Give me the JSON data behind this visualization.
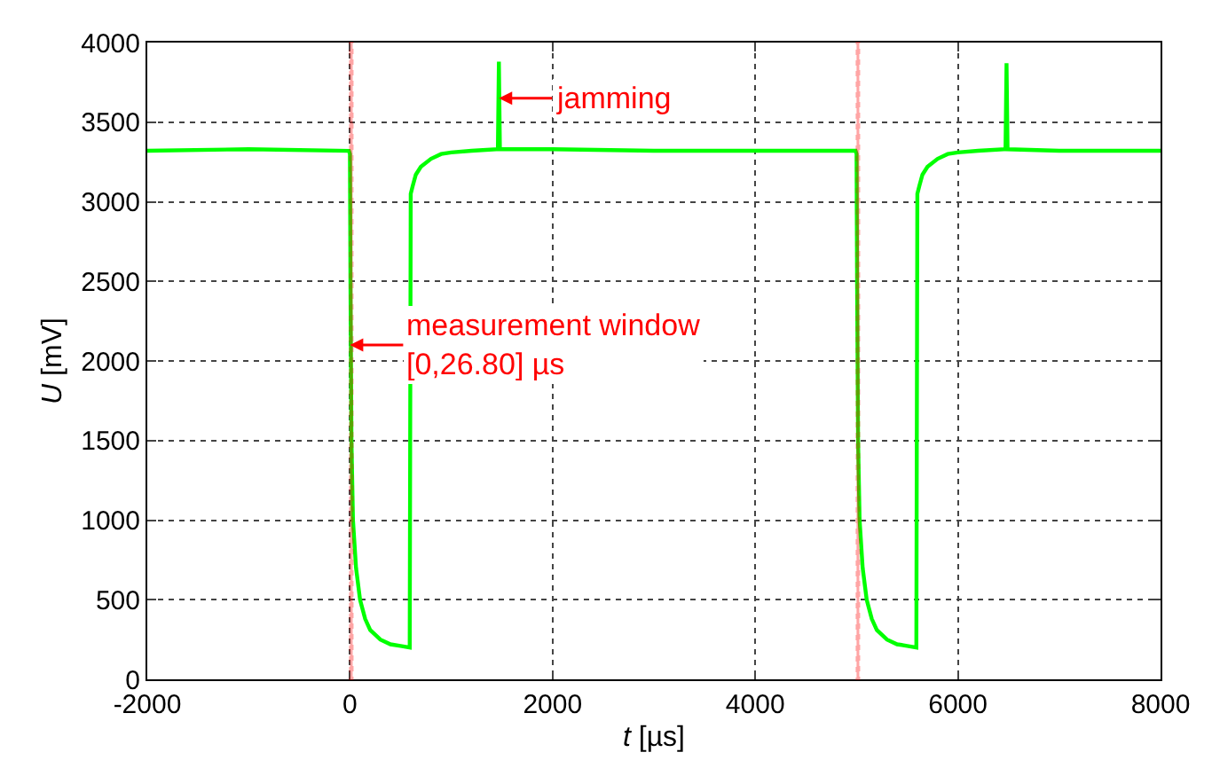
{
  "chart_data": {
    "type": "line",
    "xlabel": "t [µs]",
    "ylabel": "U [mV]",
    "x": [
      -2000,
      -1000,
      -10,
      0,
      5,
      15,
      30,
      60,
      100,
      150,
      200,
      300,
      400,
      500,
      590,
      600,
      620,
      650,
      700,
      800,
      900,
      1000,
      1200,
      1460,
      1470,
      1480,
      2000,
      3000,
      4000,
      4990,
      5000,
      5005,
      5015,
      5030,
      5060,
      5100,
      5150,
      5200,
      5300,
      5400,
      5500,
      5590,
      5600,
      5620,
      5650,
      5700,
      5800,
      5900,
      6000,
      6200,
      6470,
      6480,
      6490,
      7000,
      8000
    ],
    "series": [
      {
        "color": "#00ff00",
        "values": [
          3320,
          3330,
          3320,
          3300,
          2500,
          1500,
          1000,
          700,
          500,
          380,
          310,
          250,
          220,
          210,
          200,
          3050,
          3100,
          3170,
          3220,
          3270,
          3300,
          3310,
          3320,
          3330,
          3880,
          3330,
          3330,
          3320,
          3320,
          3320,
          3300,
          2500,
          1500,
          1000,
          700,
          500,
          380,
          310,
          250,
          220,
          210,
          200,
          3050,
          3100,
          3170,
          3220,
          3270,
          3300,
          3310,
          3320,
          3330,
          3870,
          3330,
          3320,
          3320
        ]
      }
    ],
    "xlim": [
      -2000,
      8000
    ],
    "ylim": [
      0,
      4000
    ],
    "xticks": [
      -2000,
      0,
      2000,
      4000,
      6000,
      8000
    ],
    "yticks": [
      0,
      500,
      1000,
      1500,
      2000,
      2500,
      3000,
      3500,
      4000
    ],
    "grid": true,
    "marker": "none",
    "line_style": "solid",
    "bands": [
      {
        "axis": "x",
        "from": 0,
        "to": 26.8,
        "color": "#ff0000"
      },
      {
        "axis": "x",
        "from": 5000,
        "to": 5026.8,
        "color": "#ff0000"
      }
    ],
    "annotations": [
      {
        "text": "jamming",
        "x": 1470,
        "y": 3650
      },
      {
        "text": "measurement window\n[0,26.80] µs",
        "x": 0,
        "y": 2100
      }
    ]
  }
}
